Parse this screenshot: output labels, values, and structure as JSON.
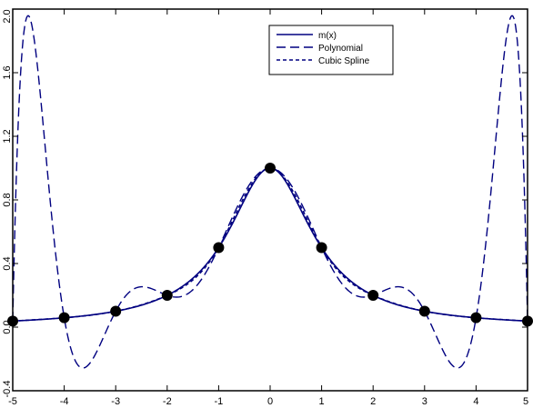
{
  "chart_data": {
    "type": "line",
    "title": "",
    "xlabel": "",
    "ylabel": "",
    "xlim": [
      -5.0,
      5.0
    ],
    "ylim": [
      -0.4,
      2.0
    ],
    "x_ticks": [
      -5,
      -4,
      -3,
      -2,
      -1,
      0,
      1,
      2,
      3,
      4,
      5
    ],
    "x_tick_labels": [
      "-5",
      "-4",
      "-3",
      "-2",
      "-1",
      "0",
      "1",
      "2",
      "3",
      "4",
      "5"
    ],
    "y_ticks": [
      -0.4,
      0.0,
      0.4,
      0.8,
      1.2,
      1.6,
      2.0
    ],
    "y_tick_labels": [
      "-0.4",
      "0.0",
      "0.4",
      "0.8",
      "1.2",
      "1.6",
      "2.0"
    ],
    "legend_position": "top-center",
    "color": "#000080",
    "series": [
      {
        "name": "m(x)",
        "style": "solid",
        "function": "1/(1+x^2)"
      },
      {
        "name": "Polynomial",
        "style": "long-dash",
        "function": "degree-10 interpolating polynomial through the 11 knots"
      },
      {
        "name": "Cubic Spline",
        "style": "short-dash",
        "function": "natural cubic spline through the 11 knots"
      }
    ],
    "knots": {
      "x": [
        -5,
        -4,
        -3,
        -2,
        -1,
        0,
        1,
        2,
        3,
        4,
        5
      ],
      "y": [
        0.038,
        0.059,
        0.1,
        0.2,
        0.5,
        1.0,
        0.5,
        0.2,
        0.1,
        0.059,
        0.038
      ]
    }
  }
}
